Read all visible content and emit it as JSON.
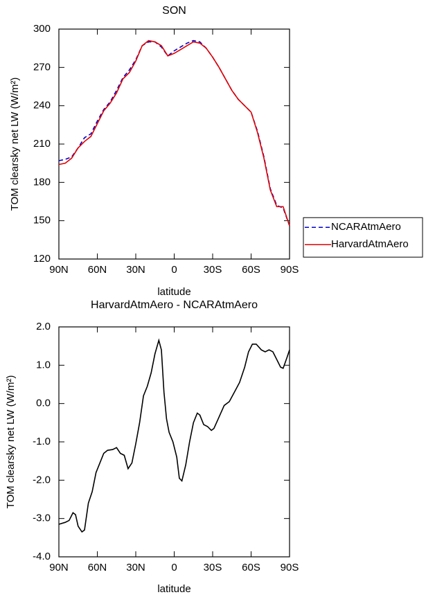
{
  "chart_data": [
    {
      "type": "line",
      "title": "SON",
      "xlabel": "latitude",
      "ylabel": "TOM clearsky net LW (W/m²)",
      "x": [
        90,
        85,
        80,
        75,
        70,
        65,
        60,
        55,
        50,
        45,
        40,
        35,
        30,
        25,
        20,
        15,
        10,
        5,
        0,
        -5,
        -10,
        -15,
        -20,
        -25,
        -30,
        -35,
        -40,
        -45,
        -50,
        -55,
        -60,
        -65,
        -70,
        -75,
        -80,
        -85,
        -90
      ],
      "xlim": [
        90,
        -90
      ],
      "xticks": [
        {
          "value": 90,
          "label": "90N"
        },
        {
          "value": 60,
          "label": "60N"
        },
        {
          "value": 30,
          "label": "30N"
        },
        0,
        {
          "value": -30,
          "label": "30S"
        },
        {
          "value": -60,
          "label": "60S"
        },
        {
          "value": -90,
          "label": "90S"
        }
      ],
      "ylim": [
        120,
        300
      ],
      "yticks": [
        120,
        150,
        180,
        210,
        240,
        270,
        300
      ],
      "legend": "right",
      "series": [
        {
          "name": "NCARAtmAero",
          "color": "#0000cc",
          "linestyle": "dashed",
          "values": [
            197,
            198,
            200,
            207,
            215,
            218,
            228,
            237,
            243,
            252,
            262,
            268,
            276,
            287,
            290,
            290,
            286,
            279,
            283,
            286,
            289,
            291,
            290,
            285,
            278,
            270,
            261,
            252,
            245,
            240,
            235,
            220,
            200,
            175,
            162,
            160,
            146
          ]
        },
        {
          "name": "HarvardAtmAero",
          "color": "#e00000",
          "linestyle": "solid",
          "values": [
            194,
            195,
            199,
            207,
            212,
            216,
            226,
            236,
            242,
            250,
            261,
            266,
            275,
            287,
            291,
            290,
            287,
            279,
            281,
            284,
            287,
            290,
            289,
            285,
            278,
            270,
            261,
            252,
            245,
            240,
            235,
            219,
            199,
            174,
            161,
            161,
            146
          ]
        }
      ]
    },
    {
      "type": "line",
      "title": "HarvardAtmAero - NCARAtmAero",
      "xlabel": "latitude",
      "ylabel": "TOM clearsky net LW (W/m²)",
      "x": [
        90,
        85,
        82,
        79,
        77,
        75,
        72,
        70,
        67,
        64,
        61,
        58,
        55,
        52,
        48,
        45,
        42,
        39,
        36,
        33,
        30,
        27,
        24,
        21,
        18,
        15,
        12,
        10,
        8,
        6,
        4,
        1,
        -2,
        -4,
        -6,
        -9,
        -12,
        -15,
        -18,
        -20,
        -23,
        -26,
        -29,
        -31,
        -35,
        -39,
        -43,
        -47,
        -51,
        -55,
        -58,
        -61,
        -64,
        -68,
        -71,
        -74,
        -77,
        -80,
        -83,
        -85,
        -88,
        -90
      ],
      "xlim": [
        90,
        -90
      ],
      "xticks": [
        {
          "value": 90,
          "label": "90N"
        },
        {
          "value": 60,
          "label": "60N"
        },
        {
          "value": 30,
          "label": "30N"
        },
        0,
        {
          "value": -30,
          "label": "30S"
        },
        {
          "value": -60,
          "label": "60S"
        },
        {
          "value": -90,
          "label": "90S"
        }
      ],
      "ylim": [
        -4,
        2
      ],
      "yticks": [
        {
          "value": -4,
          "label": "-4.0"
        },
        {
          "value": -3,
          "label": "-3.0"
        },
        {
          "value": -2,
          "label": "-2.0"
        },
        {
          "value": -1,
          "label": "-1.0"
        },
        {
          "value": 0,
          "label": "0.0"
        },
        {
          "value": 1,
          "label": "1.0"
        },
        {
          "value": 2,
          "label": "2.0"
        }
      ],
      "color": "#000000",
      "values": [
        -3.15,
        -3.1,
        -3.05,
        -2.85,
        -2.9,
        -3.2,
        -3.35,
        -3.3,
        -2.6,
        -2.3,
        -1.8,
        -1.55,
        -1.3,
        -1.22,
        -1.2,
        -1.15,
        -1.3,
        -1.35,
        -1.7,
        -1.55,
        -1.05,
        -0.5,
        0.2,
        0.45,
        0.8,
        1.3,
        1.65,
        1.4,
        0.3,
        -0.4,
        -0.75,
        -1.0,
        -1.4,
        -1.95,
        -2.02,
        -1.6,
        -1.0,
        -0.5,
        -0.25,
        -0.3,
        -0.55,
        -0.6,
        -0.7,
        -0.65,
        -0.35,
        -0.05,
        0.05,
        0.3,
        0.55,
        0.95,
        1.35,
        1.55,
        1.55,
        1.4,
        1.35,
        1.4,
        1.35,
        1.15,
        0.95,
        0.92,
        1.2,
        1.4
      ]
    }
  ]
}
